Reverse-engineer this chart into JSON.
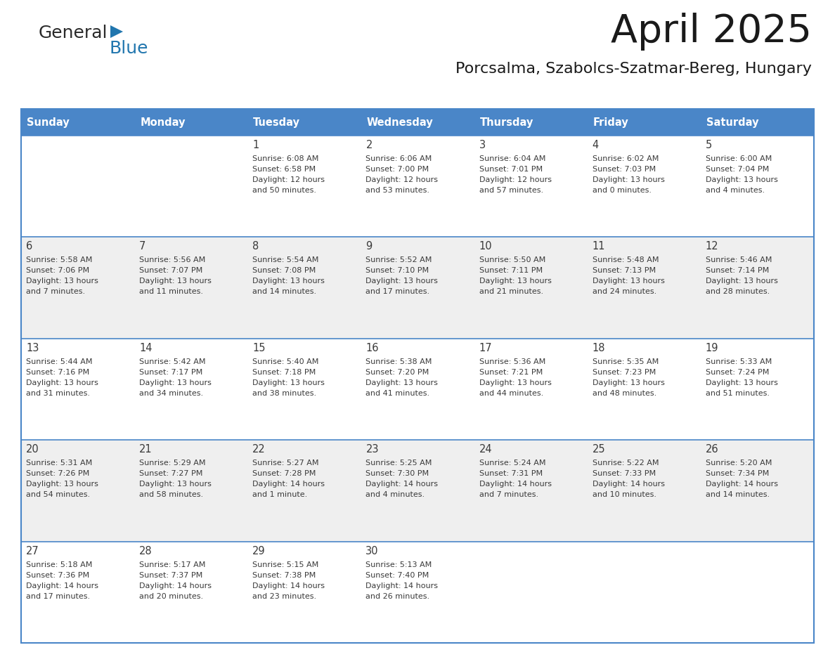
{
  "title": "April 2025",
  "subtitle": "Porcsalma, Szabolcs-Szatmar-Bereg, Hungary",
  "header_bg": "#4a86c8",
  "header_text": "#FFFFFF",
  "row_bg_light": "#FFFFFF",
  "row_bg_dark": "#EFEFEF",
  "cell_border": "#4a86c8",
  "day_headers": [
    "Sunday",
    "Monday",
    "Tuesday",
    "Wednesday",
    "Thursday",
    "Friday",
    "Saturday"
  ],
  "days": [
    {
      "day": 1,
      "col": 2,
      "row": 0,
      "sunrise": "6:08 AM",
      "sunset": "6:58 PM",
      "daylight": "12 hours",
      "daylight2": "and 50 minutes."
    },
    {
      "day": 2,
      "col": 3,
      "row": 0,
      "sunrise": "6:06 AM",
      "sunset": "7:00 PM",
      "daylight": "12 hours",
      "daylight2": "and 53 minutes."
    },
    {
      "day": 3,
      "col": 4,
      "row": 0,
      "sunrise": "6:04 AM",
      "sunset": "7:01 PM",
      "daylight": "12 hours",
      "daylight2": "and 57 minutes."
    },
    {
      "day": 4,
      "col": 5,
      "row": 0,
      "sunrise": "6:02 AM",
      "sunset": "7:03 PM",
      "daylight": "13 hours",
      "daylight2": "and 0 minutes."
    },
    {
      "day": 5,
      "col": 6,
      "row": 0,
      "sunrise": "6:00 AM",
      "sunset": "7:04 PM",
      "daylight": "13 hours",
      "daylight2": "and 4 minutes."
    },
    {
      "day": 6,
      "col": 0,
      "row": 1,
      "sunrise": "5:58 AM",
      "sunset": "7:06 PM",
      "daylight": "13 hours",
      "daylight2": "and 7 minutes."
    },
    {
      "day": 7,
      "col": 1,
      "row": 1,
      "sunrise": "5:56 AM",
      "sunset": "7:07 PM",
      "daylight": "13 hours",
      "daylight2": "and 11 minutes."
    },
    {
      "day": 8,
      "col": 2,
      "row": 1,
      "sunrise": "5:54 AM",
      "sunset": "7:08 PM",
      "daylight": "13 hours",
      "daylight2": "and 14 minutes."
    },
    {
      "day": 9,
      "col": 3,
      "row": 1,
      "sunrise": "5:52 AM",
      "sunset": "7:10 PM",
      "daylight": "13 hours",
      "daylight2": "and 17 minutes."
    },
    {
      "day": 10,
      "col": 4,
      "row": 1,
      "sunrise": "5:50 AM",
      "sunset": "7:11 PM",
      "daylight": "13 hours",
      "daylight2": "and 21 minutes."
    },
    {
      "day": 11,
      "col": 5,
      "row": 1,
      "sunrise": "5:48 AM",
      "sunset": "7:13 PM",
      "daylight": "13 hours",
      "daylight2": "and 24 minutes."
    },
    {
      "day": 12,
      "col": 6,
      "row": 1,
      "sunrise": "5:46 AM",
      "sunset": "7:14 PM",
      "daylight": "13 hours",
      "daylight2": "and 28 minutes."
    },
    {
      "day": 13,
      "col": 0,
      "row": 2,
      "sunrise": "5:44 AM",
      "sunset": "7:16 PM",
      "daylight": "13 hours",
      "daylight2": "and 31 minutes."
    },
    {
      "day": 14,
      "col": 1,
      "row": 2,
      "sunrise": "5:42 AM",
      "sunset": "7:17 PM",
      "daylight": "13 hours",
      "daylight2": "and 34 minutes."
    },
    {
      "day": 15,
      "col": 2,
      "row": 2,
      "sunrise": "5:40 AM",
      "sunset": "7:18 PM",
      "daylight": "13 hours",
      "daylight2": "and 38 minutes."
    },
    {
      "day": 16,
      "col": 3,
      "row": 2,
      "sunrise": "5:38 AM",
      "sunset": "7:20 PM",
      "daylight": "13 hours",
      "daylight2": "and 41 minutes."
    },
    {
      "day": 17,
      "col": 4,
      "row": 2,
      "sunrise": "5:36 AM",
      "sunset": "7:21 PM",
      "daylight": "13 hours",
      "daylight2": "and 44 minutes."
    },
    {
      "day": 18,
      "col": 5,
      "row": 2,
      "sunrise": "5:35 AM",
      "sunset": "7:23 PM",
      "daylight": "13 hours",
      "daylight2": "and 48 minutes."
    },
    {
      "day": 19,
      "col": 6,
      "row": 2,
      "sunrise": "5:33 AM",
      "sunset": "7:24 PM",
      "daylight": "13 hours",
      "daylight2": "and 51 minutes."
    },
    {
      "day": 20,
      "col": 0,
      "row": 3,
      "sunrise": "5:31 AM",
      "sunset": "7:26 PM",
      "daylight": "13 hours",
      "daylight2": "and 54 minutes."
    },
    {
      "day": 21,
      "col": 1,
      "row": 3,
      "sunrise": "5:29 AM",
      "sunset": "7:27 PM",
      "daylight": "13 hours",
      "daylight2": "and 58 minutes."
    },
    {
      "day": 22,
      "col": 2,
      "row": 3,
      "sunrise": "5:27 AM",
      "sunset": "7:28 PM",
      "daylight": "14 hours",
      "daylight2": "and 1 minute."
    },
    {
      "day": 23,
      "col": 3,
      "row": 3,
      "sunrise": "5:25 AM",
      "sunset": "7:30 PM",
      "daylight": "14 hours",
      "daylight2": "and 4 minutes."
    },
    {
      "day": 24,
      "col": 4,
      "row": 3,
      "sunrise": "5:24 AM",
      "sunset": "7:31 PM",
      "daylight": "14 hours",
      "daylight2": "and 7 minutes."
    },
    {
      "day": 25,
      "col": 5,
      "row": 3,
      "sunrise": "5:22 AM",
      "sunset": "7:33 PM",
      "daylight": "14 hours",
      "daylight2": "and 10 minutes."
    },
    {
      "day": 26,
      "col": 6,
      "row": 3,
      "sunrise": "5:20 AM",
      "sunset": "7:34 PM",
      "daylight": "14 hours",
      "daylight2": "and 14 minutes."
    },
    {
      "day": 27,
      "col": 0,
      "row": 4,
      "sunrise": "5:18 AM",
      "sunset": "7:36 PM",
      "daylight": "14 hours",
      "daylight2": "and 17 minutes."
    },
    {
      "day": 28,
      "col": 1,
      "row": 4,
      "sunrise": "5:17 AM",
      "sunset": "7:37 PM",
      "daylight": "14 hours",
      "daylight2": "and 20 minutes."
    },
    {
      "day": 29,
      "col": 2,
      "row": 4,
      "sunrise": "5:15 AM",
      "sunset": "7:38 PM",
      "daylight": "14 hours",
      "daylight2": "and 23 minutes."
    },
    {
      "day": 30,
      "col": 3,
      "row": 4,
      "sunrise": "5:13 AM",
      "sunset": "7:40 PM",
      "daylight": "14 hours",
      "daylight2": "and 26 minutes."
    }
  ],
  "num_rows": 5,
  "num_cols": 7
}
